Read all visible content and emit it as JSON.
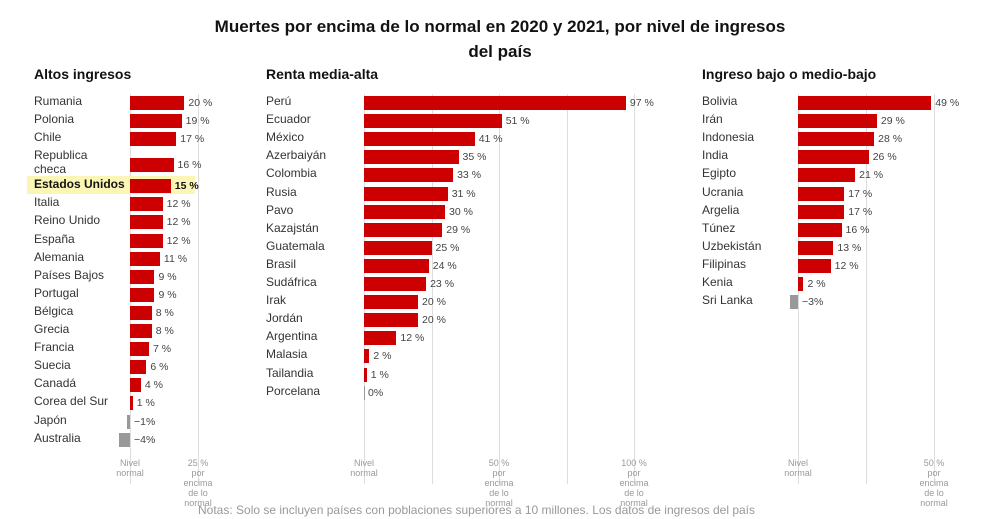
{
  "title": "Muertes por encima de lo normal en 2020 y 2021, por nivel de ingresos del país",
  "note": "Notas: Solo se incluyen países con poblaciones superiores a 10 millones. Los datos de ingresos del país",
  "colors": {
    "positive": "#cc0000",
    "negative": "#999999",
    "highlight": "#fbf6b5"
  },
  "chart_data": [
    {
      "type": "bar",
      "orientation": "horizontal",
      "title": "Altos ingresos",
      "categories": [
        "Rumania",
        "Polonia",
        "Chile",
        "Republica checa",
        "Estados Unidos",
        "Italia",
        "Reino Unido",
        "España",
        "Alemania",
        "Países Bajos",
        "Portugal",
        "Bélgica",
        "Grecia",
        "Francia",
        "Suecia",
        "Canadá",
        "Corea del Sur",
        "Japón",
        "Australia"
      ],
      "values": [
        20,
        19,
        17,
        16,
        15,
        12,
        12,
        12,
        11,
        9,
        9,
        8,
        8,
        7,
        6,
        4,
        1,
        -1,
        -4
      ],
      "value_labels": [
        "20 %",
        "19 %",
        "17 %",
        "16 %",
        "15 %",
        "12 %",
        "12 %",
        "12 %",
        "11 %",
        "9 %",
        "9 %",
        "8 %",
        "8 %",
        "7 %",
        "6 %",
        "4 %",
        "1 %",
        "−1%",
        "−4%"
      ],
      "highlight": "Estados Unidos",
      "xlim": [
        0,
        25
      ],
      "gridlines": [
        0,
        25
      ],
      "axis_labels": [
        {
          "value": 0,
          "lines": [
            "Nivel",
            "normal"
          ]
        },
        {
          "value": 25,
          "lines": [
            "25 %",
            "por",
            "encima",
            "de lo",
            "normal"
          ]
        }
      ]
    },
    {
      "type": "bar",
      "orientation": "horizontal",
      "title": "Renta media-alta",
      "categories": [
        "Perú",
        "Ecuador",
        "México",
        "Azerbaiyán",
        "Colombia",
        "Rusia",
        "Pavo",
        "Kazajstán",
        "Guatemala",
        "Brasil",
        "Sudáfrica",
        "Irak",
        "Jordán",
        "Argentina",
        "Malasia",
        "Tailandia",
        "Porcelana"
      ],
      "values": [
        97,
        51,
        41,
        35,
        33,
        31,
        30,
        29,
        25,
        24,
        23,
        20,
        20,
        12,
        2,
        1,
        0
      ],
      "value_labels": [
        "97 %",
        "51 %",
        "41 %",
        "35 %",
        "33 %",
        "31 %",
        "30 %",
        "29 %",
        "25 %",
        "24 %",
        "23 %",
        "20 %",
        "20 %",
        "12 %",
        "2 %",
        "1 %",
        "0%"
      ],
      "xlim": [
        0,
        100
      ],
      "gridlines": [
        0,
        25,
        50,
        75,
        100
      ],
      "axis_labels": [
        {
          "value": 0,
          "lines": [
            "Nivel",
            "normal"
          ]
        },
        {
          "value": 50,
          "lines": [
            "50 %",
            "por",
            "encima",
            "de lo",
            "normal"
          ]
        },
        {
          "value": 100,
          "lines": [
            "100 %",
            "por",
            "encima",
            "de lo",
            "normal"
          ]
        }
      ]
    },
    {
      "type": "bar",
      "orientation": "horizontal",
      "title": "Ingreso bajo o medio-bajo",
      "categories": [
        "Bolivia",
        "Irán",
        "Indonesia",
        "India",
        "Egipto",
        "Ucrania",
        "Argelia",
        "Túnez",
        "Uzbekistán",
        "Filipinas",
        "Kenia",
        "Sri Lanka"
      ],
      "values": [
        49,
        29,
        28,
        26,
        21,
        17,
        17,
        16,
        13,
        12,
        2,
        -3
      ],
      "value_labels": [
        "49 %",
        "29 %",
        "28 %",
        "26 %",
        "21 %",
        "17 %",
        "17 %",
        "16 %",
        "13 %",
        "12 %",
        "2 %",
        "−3%"
      ],
      "xlim": [
        0,
        50
      ],
      "gridlines": [
        0,
        25,
        50
      ],
      "axis_labels": [
        {
          "value": 0,
          "lines": [
            "Nivel",
            "normal"
          ]
        },
        {
          "value": 50,
          "lines": [
            "50 %",
            "por",
            "encima",
            "de lo",
            "normal"
          ]
        }
      ]
    }
  ]
}
